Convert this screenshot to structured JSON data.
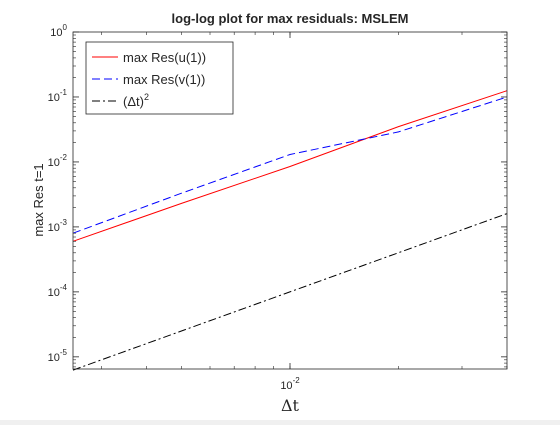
{
  "chart_data": {
    "type": "line",
    "title": "log-log plot for max residuals: MSLEM",
    "xlabel": "Δt",
    "ylabel": "max Res t=1",
    "x_scale": "log",
    "y_scale": "log",
    "xlim": [
      0.0025,
      0.04
    ],
    "ylim": [
      6.5e-06,
      1
    ],
    "grid": false,
    "legend_position": "top-left",
    "x_ticks": [
      {
        "value": 0.01,
        "base": "10",
        "exp": "-2"
      }
    ],
    "y_ticks": [
      {
        "value": 1e-05,
        "base": "10",
        "exp": "-5"
      },
      {
        "value": 0.0001,
        "base": "10",
        "exp": "-4"
      },
      {
        "value": 0.001,
        "base": "10",
        "exp": "-3"
      },
      {
        "value": 0.01,
        "base": "10",
        "exp": "-2"
      },
      {
        "value": 0.1,
        "base": "10",
        "exp": "-1"
      },
      {
        "value": 1,
        "base": "10",
        "exp": "0"
      }
    ],
    "series": [
      {
        "name": "max Res(u(1))",
        "color": "#ff0000",
        "dash": "solid",
        "x": [
          0.0025,
          0.005,
          0.01,
          0.02,
          0.04
        ],
        "y": [
          0.0006,
          0.0023,
          0.0085,
          0.035,
          0.125
        ]
      },
      {
        "name": "max Res(v(1))",
        "color": "#0000ff",
        "dash": "dashed",
        "x": [
          0.0025,
          0.005,
          0.01,
          0.02,
          0.04
        ],
        "y": [
          0.0008,
          0.0033,
          0.013,
          0.029,
          0.1
        ]
      },
      {
        "name": "(Δt)",
        "name_superscript": "2",
        "color": "#000000",
        "dash": "dashdot",
        "x": [
          0.0025,
          0.04
        ],
        "y": [
          6.25e-06,
          0.0016
        ]
      }
    ]
  }
}
